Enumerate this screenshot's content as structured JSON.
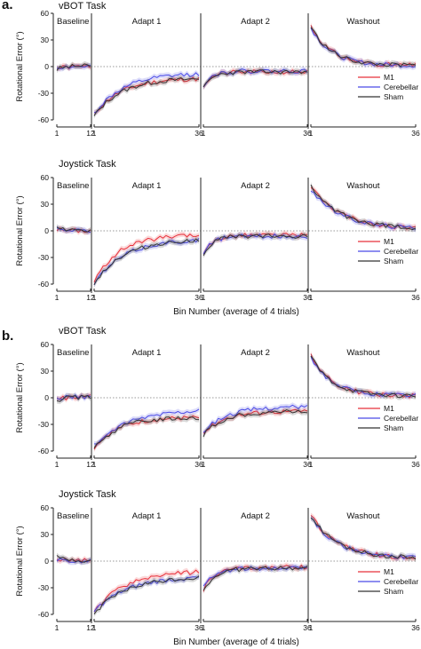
{
  "chart_data": [
    {
      "panel_label": "a.",
      "title": "vBOT Task",
      "type": "line",
      "ylabel": "Rotational Error (°)",
      "xlabel": "",
      "ylim": [
        -60,
        60
      ],
      "yticks": [
        60,
        30,
        0,
        -30,
        -60
      ],
      "phases": [
        {
          "label": "Baseline",
          "bins": 12,
          "ticks": [
            1,
            12
          ]
        },
        {
          "label": "Adapt 1",
          "bins": 36,
          "ticks": [
            1,
            36
          ]
        },
        {
          "label": "Adapt 2",
          "bins": 36,
          "ticks": [
            1,
            36
          ]
        },
        {
          "label": "Washout",
          "bins": 36,
          "ticks": [
            1,
            36
          ]
        }
      ],
      "legend": {
        "position": "lower-right",
        "entries": [
          "M1",
          "Cerebellar",
          "Sham"
        ]
      },
      "series": [
        {
          "name": "M1",
          "phases": [
            {
              "start": -2,
              "end": 0,
              "tau": 3
            },
            {
              "start": -54,
              "end": -13,
              "tau": 9
            },
            {
              "start": -22,
              "end": -6,
              "tau": 3
            },
            {
              "start": 46,
              "end": 1,
              "tau": 7
            }
          ]
        },
        {
          "name": "Cerebellar",
          "phases": [
            {
              "start": -1,
              "end": 0,
              "tau": 3
            },
            {
              "start": -53,
              "end": -7,
              "tau": 10
            },
            {
              "start": -21,
              "end": -5,
              "tau": 3
            },
            {
              "start": 44,
              "end": 1,
              "tau": 7
            }
          ]
        },
        {
          "name": "Sham",
          "phases": [
            {
              "start": -3,
              "end": 1,
              "tau": 3
            },
            {
              "start": -56,
              "end": -13,
              "tau": 9
            },
            {
              "start": -25,
              "end": -6,
              "tau": 3
            },
            {
              "start": 45,
              "end": 1,
              "tau": 7
            }
          ]
        }
      ]
    },
    {
      "title": "Joystick Task",
      "type": "line",
      "ylabel": "Rotational Error (°)",
      "xlabel": "Bin Number (average of 4 trials)",
      "ylim": [
        -60,
        60
      ],
      "yticks": [
        60,
        30,
        0,
        -30,
        -60
      ],
      "phases": [
        {
          "label": "Baseline",
          "bins": 12,
          "ticks": [
            1,
            12
          ]
        },
        {
          "label": "Adapt 1",
          "bins": 36,
          "ticks": [
            1,
            36
          ]
        },
        {
          "label": "Adapt 2",
          "bins": 36,
          "ticks": [
            1,
            36
          ]
        },
        {
          "label": "Washout",
          "bins": 36,
          "ticks": [
            1,
            36
          ]
        }
      ],
      "legend": {
        "position": "lower-right",
        "entries": [
          "M1",
          "Cerebellar",
          "Sham"
        ]
      },
      "series": [
        {
          "name": "M1",
          "phases": [
            {
              "start": 2,
              "end": 0,
              "tau": 3
            },
            {
              "start": -58,
              "end": -5,
              "tau": 8
            },
            {
              "start": -28,
              "end": -5,
              "tau": 3
            },
            {
              "start": 50,
              "end": 2,
              "tau": 10
            }
          ]
        },
        {
          "name": "Cerebellar",
          "phases": [
            {
              "start": 1,
              "end": 0,
              "tau": 3
            },
            {
              "start": -60,
              "end": -9,
              "tau": 10
            },
            {
              "start": -27,
              "end": -6,
              "tau": 3
            },
            {
              "start": 47,
              "end": 2,
              "tau": 10
            }
          ]
        },
        {
          "name": "Sham",
          "phases": [
            {
              "start": 3,
              "end": 0,
              "tau": 3
            },
            {
              "start": -59,
              "end": -9,
              "tau": 10
            },
            {
              "start": -28,
              "end": -6,
              "tau": 3
            },
            {
              "start": 50,
              "end": 2,
              "tau": 10
            }
          ]
        }
      ]
    },
    {
      "panel_label": "b.",
      "title": "vBOT Task",
      "type": "line",
      "ylabel": "Rotational Error (°)",
      "xlabel": "",
      "ylim": [
        -60,
        60
      ],
      "yticks": [
        60,
        30,
        0,
        -30,
        -60
      ],
      "phases": [
        {
          "label": "Baseline",
          "bins": 12,
          "ticks": [
            1,
            12
          ]
        },
        {
          "label": "Adapt 1",
          "bins": 36,
          "ticks": [
            1,
            36
          ]
        },
        {
          "label": "Adapt 2",
          "bins": 36,
          "ticks": [
            1,
            36
          ]
        },
        {
          "label": "Washout",
          "bins": 36,
          "ticks": [
            1,
            36
          ]
        }
      ],
      "legend": {
        "position": "lower-right",
        "entries": [
          "M1",
          "Cerebellar",
          "Sham"
        ]
      },
      "series": [
        {
          "name": "M1",
          "phases": [
            {
              "start": -2,
              "end": 1,
              "tau": 3
            },
            {
              "start": -56,
              "end": -22,
              "tau": 8
            },
            {
              "start": -40,
              "end": -15,
              "tau": 7
            },
            {
              "start": 48,
              "end": 2,
              "tau": 7
            }
          ]
        },
        {
          "name": "Cerebellar",
          "phases": [
            {
              "start": -1,
              "end": 1,
              "tau": 3
            },
            {
              "start": -54,
              "end": -12,
              "tau": 12
            },
            {
              "start": -38,
              "end": -10,
              "tau": 8
            },
            {
              "start": 46,
              "end": 2,
              "tau": 7
            }
          ]
        },
        {
          "name": "Sham",
          "phases": [
            {
              "start": -3,
              "end": 1,
              "tau": 3
            },
            {
              "start": -58,
              "end": -22,
              "tau": 8
            },
            {
              "start": -42,
              "end": -15,
              "tau": 7
            },
            {
              "start": 47,
              "end": 2,
              "tau": 7
            }
          ]
        }
      ]
    },
    {
      "title": "Joystick Task",
      "type": "line",
      "ylabel": "Rotational Error (°)",
      "xlabel": "Bin Number (average of 4 trials)",
      "ylim": [
        -60,
        60
      ],
      "yticks": [
        60,
        30,
        0,
        -30,
        -60
      ],
      "phases": [
        {
          "label": "Baseline",
          "bins": 12,
          "ticks": [
            1,
            12
          ]
        },
        {
          "label": "Adapt 1",
          "bins": 36,
          "ticks": [
            1,
            36
          ]
        },
        {
          "label": "Adapt 2",
          "bins": 36,
          "ticks": [
            1,
            36
          ]
        },
        {
          "label": "Washout",
          "bins": 36,
          "ticks": [
            1,
            36
          ]
        }
      ],
      "legend": {
        "position": "lower-right",
        "entries": [
          "M1",
          "Cerebellar",
          "Sham"
        ]
      },
      "series": [
        {
          "name": "M1",
          "phases": [
            {
              "start": 3,
              "end": 1,
              "tau": 3
            },
            {
              "start": -58,
              "end": -11,
              "tau": 10
            },
            {
              "start": -32,
              "end": -7,
              "tau": 4
            },
            {
              "start": 52,
              "end": 3,
              "tau": 9
            }
          ]
        },
        {
          "name": "Cerebellar",
          "phases": [
            {
              "start": 2,
              "end": 0,
              "tau": 3
            },
            {
              "start": -57,
              "end": -17,
              "tau": 11
            },
            {
              "start": -30,
              "end": -8,
              "tau": 4
            },
            {
              "start": 50,
              "end": 3,
              "tau": 9
            }
          ]
        },
        {
          "name": "Sham",
          "phases": [
            {
              "start": 4,
              "end": 1,
              "tau": 3
            },
            {
              "start": -59,
              "end": -17,
              "tau": 11
            },
            {
              "start": -34,
              "end": -8,
              "tau": 4
            },
            {
              "start": 51,
              "end": 3,
              "tau": 9
            }
          ]
        }
      ]
    }
  ],
  "series_colors": {
    "M1": "#e8303a",
    "Cerebellar": "#4a4ae6",
    "Sham": "#333333"
  }
}
